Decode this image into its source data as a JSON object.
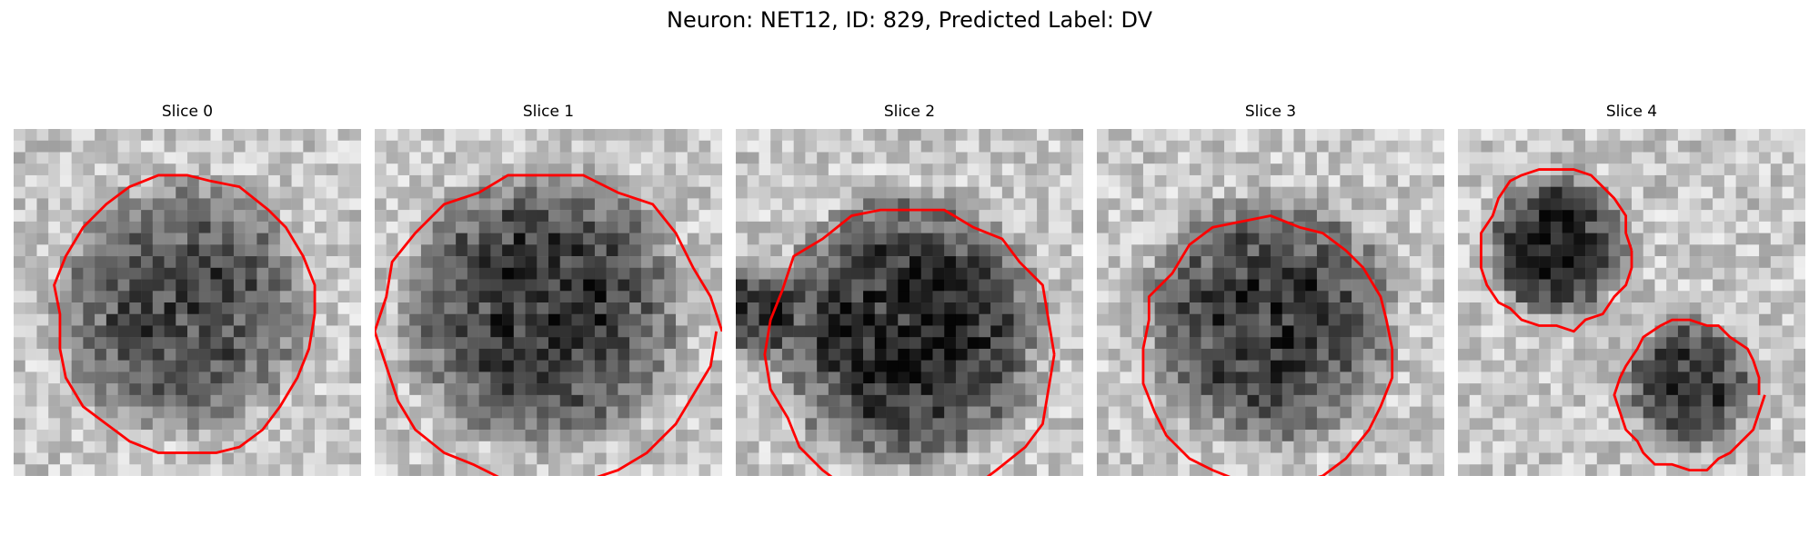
{
  "figure": {
    "title": "Neuron: NET12, ID: 829, Predicted Label: DV"
  },
  "panels": [
    {
      "title": "Slice 0"
    },
    {
      "title": "Slice 1"
    },
    {
      "title": "Slice 2"
    },
    {
      "title": "Slice 3"
    },
    {
      "title": "Slice 4"
    }
  ],
  "colors": {
    "contour": "#ff0000",
    "background": "#ffffff"
  }
}
